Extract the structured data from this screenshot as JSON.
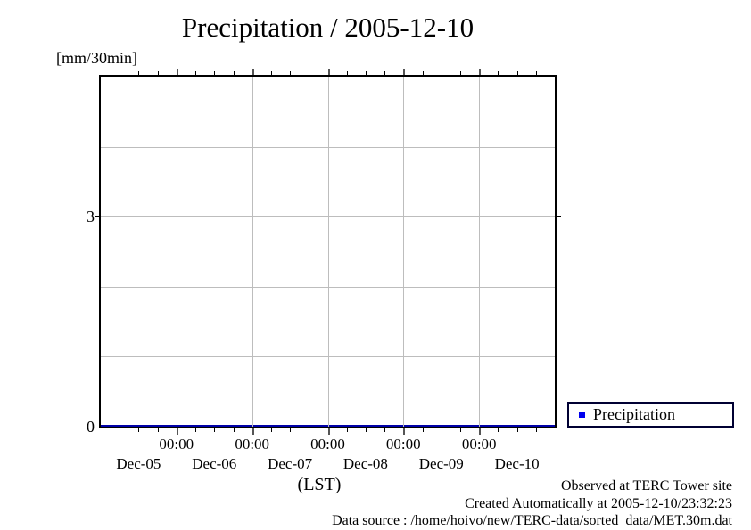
{
  "chart_data": {
    "type": "points",
    "title": "Precipitation / 2005-12-10",
    "y_unit_label": "[mm/30min]",
    "xlabel": "(LST)",
    "ylim": [
      0,
      5
    ],
    "y_gridline_values": [
      1,
      2,
      3,
      4
    ],
    "y_tick_labels": [
      {
        "value": 3,
        "label": "3"
      },
      {
        "value": 0,
        "label": "0"
      }
    ],
    "x_start": "Dec-05 00:00",
    "x_end": "Dec-11 00:00",
    "x_days": 6,
    "x_minor_ticks_per_day": 4,
    "x_midnight_labels": [
      "00:00",
      "00:00",
      "00:00",
      "00:00",
      "00:00"
    ],
    "x_day_labels": [
      "Dec-05",
      "Dec-06",
      "Dec-07",
      "Dec-08",
      "Dec-09",
      "Dec-10"
    ],
    "grid": true,
    "legend_position": "outside-bottom-right",
    "series": [
      {
        "name": "Precipitation",
        "color": "#0000ee",
        "zero_line_color": "#0000a8",
        "sampling": "30min",
        "constant_value": 0,
        "points": [
          {
            "x": "Dec-05 00:00",
            "y": 0
          },
          {
            "x": "Dec-06 00:00",
            "y": 0
          },
          {
            "x": "Dec-07 00:00",
            "y": 0
          },
          {
            "x": "Dec-08 00:00",
            "y": 0
          },
          {
            "x": "Dec-09 00:00",
            "y": 0
          },
          {
            "x": "Dec-10 00:00",
            "y": 0
          },
          {
            "x": "Dec-11 00:00",
            "y": 0
          }
        ]
      }
    ]
  },
  "legend": {
    "label": "Precipitation"
  },
  "footer": {
    "observed": "Observed at TERC Tower site",
    "created": "Created Automatically at 2005-12-10/23:32:23",
    "datasource": "Data source : /home/hoivo/new/TERC-data/sorted  data/MET.30m.dat"
  }
}
